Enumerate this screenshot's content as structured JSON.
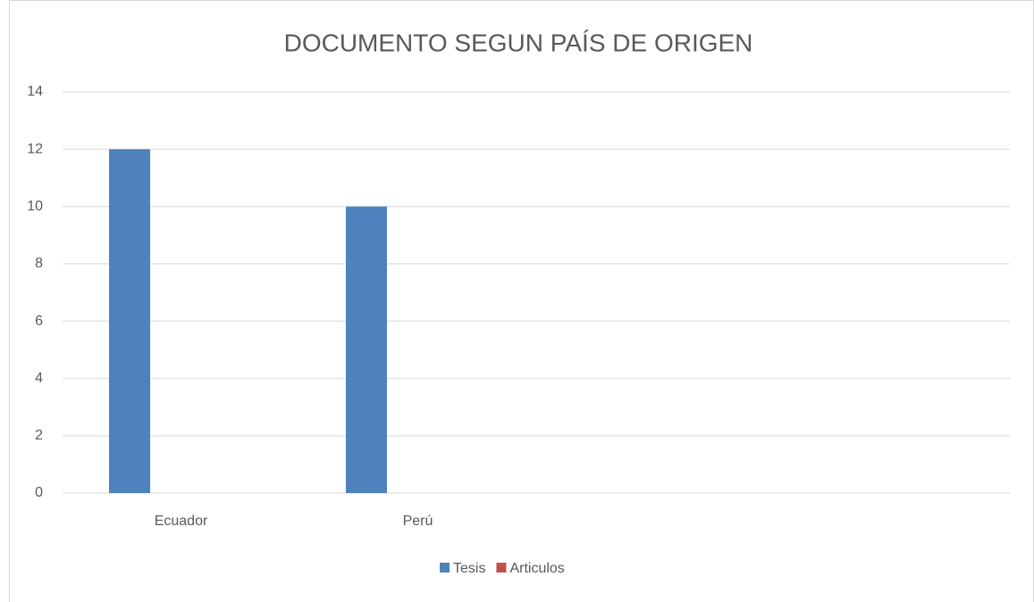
{
  "chart_data": {
    "type": "bar",
    "title": "DOCUMENTO SEGUN PAÍS DE ORIGEN",
    "categories": [
      "Ecuador",
      "Perú",
      null,
      null
    ],
    "series": [
      {
        "name": "Tesis",
        "color": "#4f81bd",
        "values": [
          12,
          10,
          null,
          null
        ]
      },
      {
        "name": "Articulos",
        "color": "#c0504d",
        "values": [
          0,
          0,
          null,
          null
        ]
      }
    ],
    "ylim": [
      0,
      14
    ],
    "yticks": [
      0,
      2,
      4,
      6,
      8,
      10,
      12,
      14
    ],
    "grid": true,
    "legend": "bottom"
  }
}
